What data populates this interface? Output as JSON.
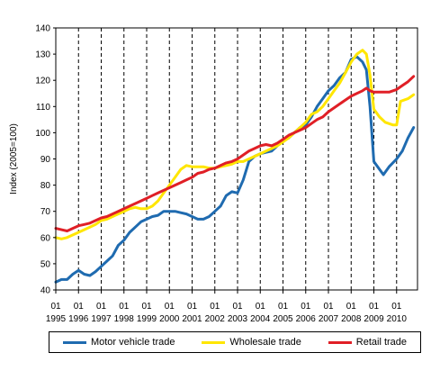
{
  "chart_data": {
    "type": "line",
    "ylabel": "Index (2005=100)",
    "ylim": [
      40,
      140
    ],
    "yticks": [
      40,
      50,
      60,
      70,
      80,
      90,
      100,
      110,
      120,
      130,
      140
    ],
    "xlim": [
      1995.0,
      2010.92
    ],
    "x_month_labels": [
      "01",
      "01",
      "01",
      "01",
      "01",
      "01",
      "01",
      "01",
      "01",
      "01",
      "01",
      "01",
      "01",
      "01",
      "01",
      "01"
    ],
    "x_year_labels": [
      "1995",
      "1996",
      "1997",
      "1998",
      "1999",
      "2000",
      "2001",
      "2002",
      "2003",
      "2004",
      "2005",
      "2006",
      "2007",
      "2008",
      "2009",
      "2010"
    ],
    "grid": "vertical dashed at each year",
    "legend_position": "bottom",
    "series": [
      {
        "name": "Motor vehicle trade",
        "color": "#1f6bb0",
        "points": [
          [
            1995.0,
            43
          ],
          [
            1995.25,
            44
          ],
          [
            1995.5,
            44
          ],
          [
            1995.75,
            46
          ],
          [
            1996.0,
            47.5
          ],
          [
            1996.25,
            46
          ],
          [
            1996.5,
            45.5
          ],
          [
            1996.75,
            47
          ],
          [
            1997.0,
            49
          ],
          [
            1997.25,
            51
          ],
          [
            1997.5,
            53
          ],
          [
            1997.75,
            57
          ],
          [
            1998.0,
            59
          ],
          [
            1998.25,
            62
          ],
          [
            1998.5,
            64
          ],
          [
            1998.75,
            66
          ],
          [
            1999.0,
            67
          ],
          [
            1999.25,
            68
          ],
          [
            1999.5,
            68.5
          ],
          [
            1999.75,
            70
          ],
          [
            2000.0,
            70
          ],
          [
            2000.25,
            70
          ],
          [
            2000.5,
            69.5
          ],
          [
            2000.75,
            69
          ],
          [
            2001.0,
            68
          ],
          [
            2001.25,
            67
          ],
          [
            2001.5,
            67
          ],
          [
            2001.75,
            68
          ],
          [
            2002.0,
            70
          ],
          [
            2002.25,
            72
          ],
          [
            2002.5,
            76
          ],
          [
            2002.75,
            77.5
          ],
          [
            2003.0,
            77
          ],
          [
            2003.25,
            82
          ],
          [
            2003.5,
            89
          ],
          [
            2003.75,
            91
          ],
          [
            2004.0,
            92
          ],
          [
            2004.25,
            92.5
          ],
          [
            2004.5,
            93
          ],
          [
            2004.75,
            95
          ],
          [
            2005.0,
            97
          ],
          [
            2005.25,
            98
          ],
          [
            2005.5,
            100
          ],
          [
            2005.75,
            102
          ],
          [
            2006.0,
            103
          ],
          [
            2006.25,
            106
          ],
          [
            2006.5,
            110
          ],
          [
            2006.75,
            113
          ],
          [
            2007.0,
            116
          ],
          [
            2007.25,
            118
          ],
          [
            2007.5,
            121
          ],
          [
            2007.75,
            123
          ],
          [
            2008.0,
            128
          ],
          [
            2008.25,
            129
          ],
          [
            2008.5,
            127
          ],
          [
            2008.67,
            124
          ],
          [
            2008.83,
            110
          ],
          [
            2009.0,
            89
          ],
          [
            2009.25,
            86
          ],
          [
            2009.42,
            84
          ],
          [
            2009.67,
            87
          ],
          [
            2010.0,
            90
          ],
          [
            2010.25,
            93
          ],
          [
            2010.5,
            98
          ],
          [
            2010.75,
            102
          ]
        ]
      },
      {
        "name": "Wholesale trade",
        "color": "#ffe600",
        "points": [
          [
            1995.0,
            60
          ],
          [
            1995.25,
            59.5
          ],
          [
            1995.5,
            60
          ],
          [
            1995.75,
            61
          ],
          [
            1996.0,
            62
          ],
          [
            1996.25,
            63
          ],
          [
            1996.5,
            64
          ],
          [
            1996.75,
            65
          ],
          [
            1997.0,
            66.5
          ],
          [
            1997.25,
            67
          ],
          [
            1997.5,
            68
          ],
          [
            1997.75,
            69
          ],
          [
            1998.0,
            70
          ],
          [
            1998.25,
            71
          ],
          [
            1998.5,
            71.5
          ],
          [
            1998.75,
            71
          ],
          [
            1999.0,
            71
          ],
          [
            1999.25,
            72
          ],
          [
            1999.5,
            74
          ],
          [
            1999.75,
            77
          ],
          [
            2000.0,
            80
          ],
          [
            2000.25,
            83
          ],
          [
            2000.5,
            86
          ],
          [
            2000.75,
            87.5
          ],
          [
            2001.0,
            87
          ],
          [
            2001.25,
            87
          ],
          [
            2001.5,
            87
          ],
          [
            2001.75,
            86.5
          ],
          [
            2002.0,
            86.5
          ],
          [
            2002.25,
            87
          ],
          [
            2002.5,
            87.5
          ],
          [
            2002.75,
            88
          ],
          [
            2003.0,
            89
          ],
          [
            2003.25,
            89
          ],
          [
            2003.5,
            90
          ],
          [
            2003.75,
            91
          ],
          [
            2004.0,
            92
          ],
          [
            2004.25,
            93
          ],
          [
            2004.5,
            94
          ],
          [
            2004.75,
            95
          ],
          [
            2005.0,
            96.5
          ],
          [
            2005.25,
            98
          ],
          [
            2005.5,
            100
          ],
          [
            2005.75,
            102
          ],
          [
            2006.0,
            104
          ],
          [
            2006.25,
            107
          ],
          [
            2006.5,
            108
          ],
          [
            2006.75,
            110
          ],
          [
            2007.0,
            113
          ],
          [
            2007.25,
            116
          ],
          [
            2007.5,
            119
          ],
          [
            2007.75,
            123
          ],
          [
            2008.0,
            127
          ],
          [
            2008.25,
            130
          ],
          [
            2008.5,
            131.5
          ],
          [
            2008.67,
            130
          ],
          [
            2008.83,
            122
          ],
          [
            2009.0,
            109
          ],
          [
            2009.25,
            106
          ],
          [
            2009.5,
            104
          ],
          [
            2009.83,
            103
          ],
          [
            2010.0,
            103
          ],
          [
            2010.17,
            112
          ],
          [
            2010.5,
            113
          ],
          [
            2010.75,
            114.5
          ]
        ]
      },
      {
        "name": "Retail trade",
        "color": "#e01f26",
        "points": [
          [
            1995.0,
            63.5
          ],
          [
            1995.25,
            63
          ],
          [
            1995.5,
            62.5
          ],
          [
            1995.75,
            63.5
          ],
          [
            1996.0,
            64.5
          ],
          [
            1996.25,
            65
          ],
          [
            1996.5,
            65.5
          ],
          [
            1996.75,
            66.5
          ],
          [
            1997.0,
            67.5
          ],
          [
            1997.25,
            68
          ],
          [
            1997.5,
            69
          ],
          [
            1997.75,
            70
          ],
          [
            1998.0,
            71
          ],
          [
            1998.25,
            72
          ],
          [
            1998.5,
            73
          ],
          [
            1998.75,
            74
          ],
          [
            1999.0,
            75
          ],
          [
            1999.25,
            76
          ],
          [
            1999.5,
            77
          ],
          [
            1999.75,
            78
          ],
          [
            2000.0,
            79
          ],
          [
            2000.25,
            80
          ],
          [
            2000.5,
            81
          ],
          [
            2000.75,
            82
          ],
          [
            2001.0,
            83
          ],
          [
            2001.25,
            84.5
          ],
          [
            2001.5,
            85
          ],
          [
            2001.75,
            86
          ],
          [
            2002.0,
            86.5
          ],
          [
            2002.25,
            87.5
          ],
          [
            2002.5,
            88.5
          ],
          [
            2002.75,
            89
          ],
          [
            2003.0,
            90
          ],
          [
            2003.25,
            91.5
          ],
          [
            2003.5,
            93
          ],
          [
            2003.75,
            94
          ],
          [
            2004.0,
            95
          ],
          [
            2004.25,
            95.5
          ],
          [
            2004.5,
            95
          ],
          [
            2004.75,
            96
          ],
          [
            2005.0,
            97.5
          ],
          [
            2005.25,
            99
          ],
          [
            2005.5,
            100
          ],
          [
            2005.75,
            101
          ],
          [
            2006.0,
            102
          ],
          [
            2006.25,
            103.5
          ],
          [
            2006.5,
            105
          ],
          [
            2006.75,
            106
          ],
          [
            2007.0,
            108
          ],
          [
            2007.25,
            109.5
          ],
          [
            2007.5,
            111
          ],
          [
            2007.75,
            112.5
          ],
          [
            2008.0,
            114
          ],
          [
            2008.25,
            115
          ],
          [
            2008.5,
            116
          ],
          [
            2008.67,
            117
          ],
          [
            2008.83,
            116
          ],
          [
            2009.0,
            115.5
          ],
          [
            2009.33,
            115.5
          ],
          [
            2009.67,
            115.5
          ],
          [
            2010.0,
            116.5
          ],
          [
            2010.25,
            118
          ],
          [
            2010.5,
            119.5
          ],
          [
            2010.75,
            121.5
          ]
        ]
      }
    ]
  }
}
